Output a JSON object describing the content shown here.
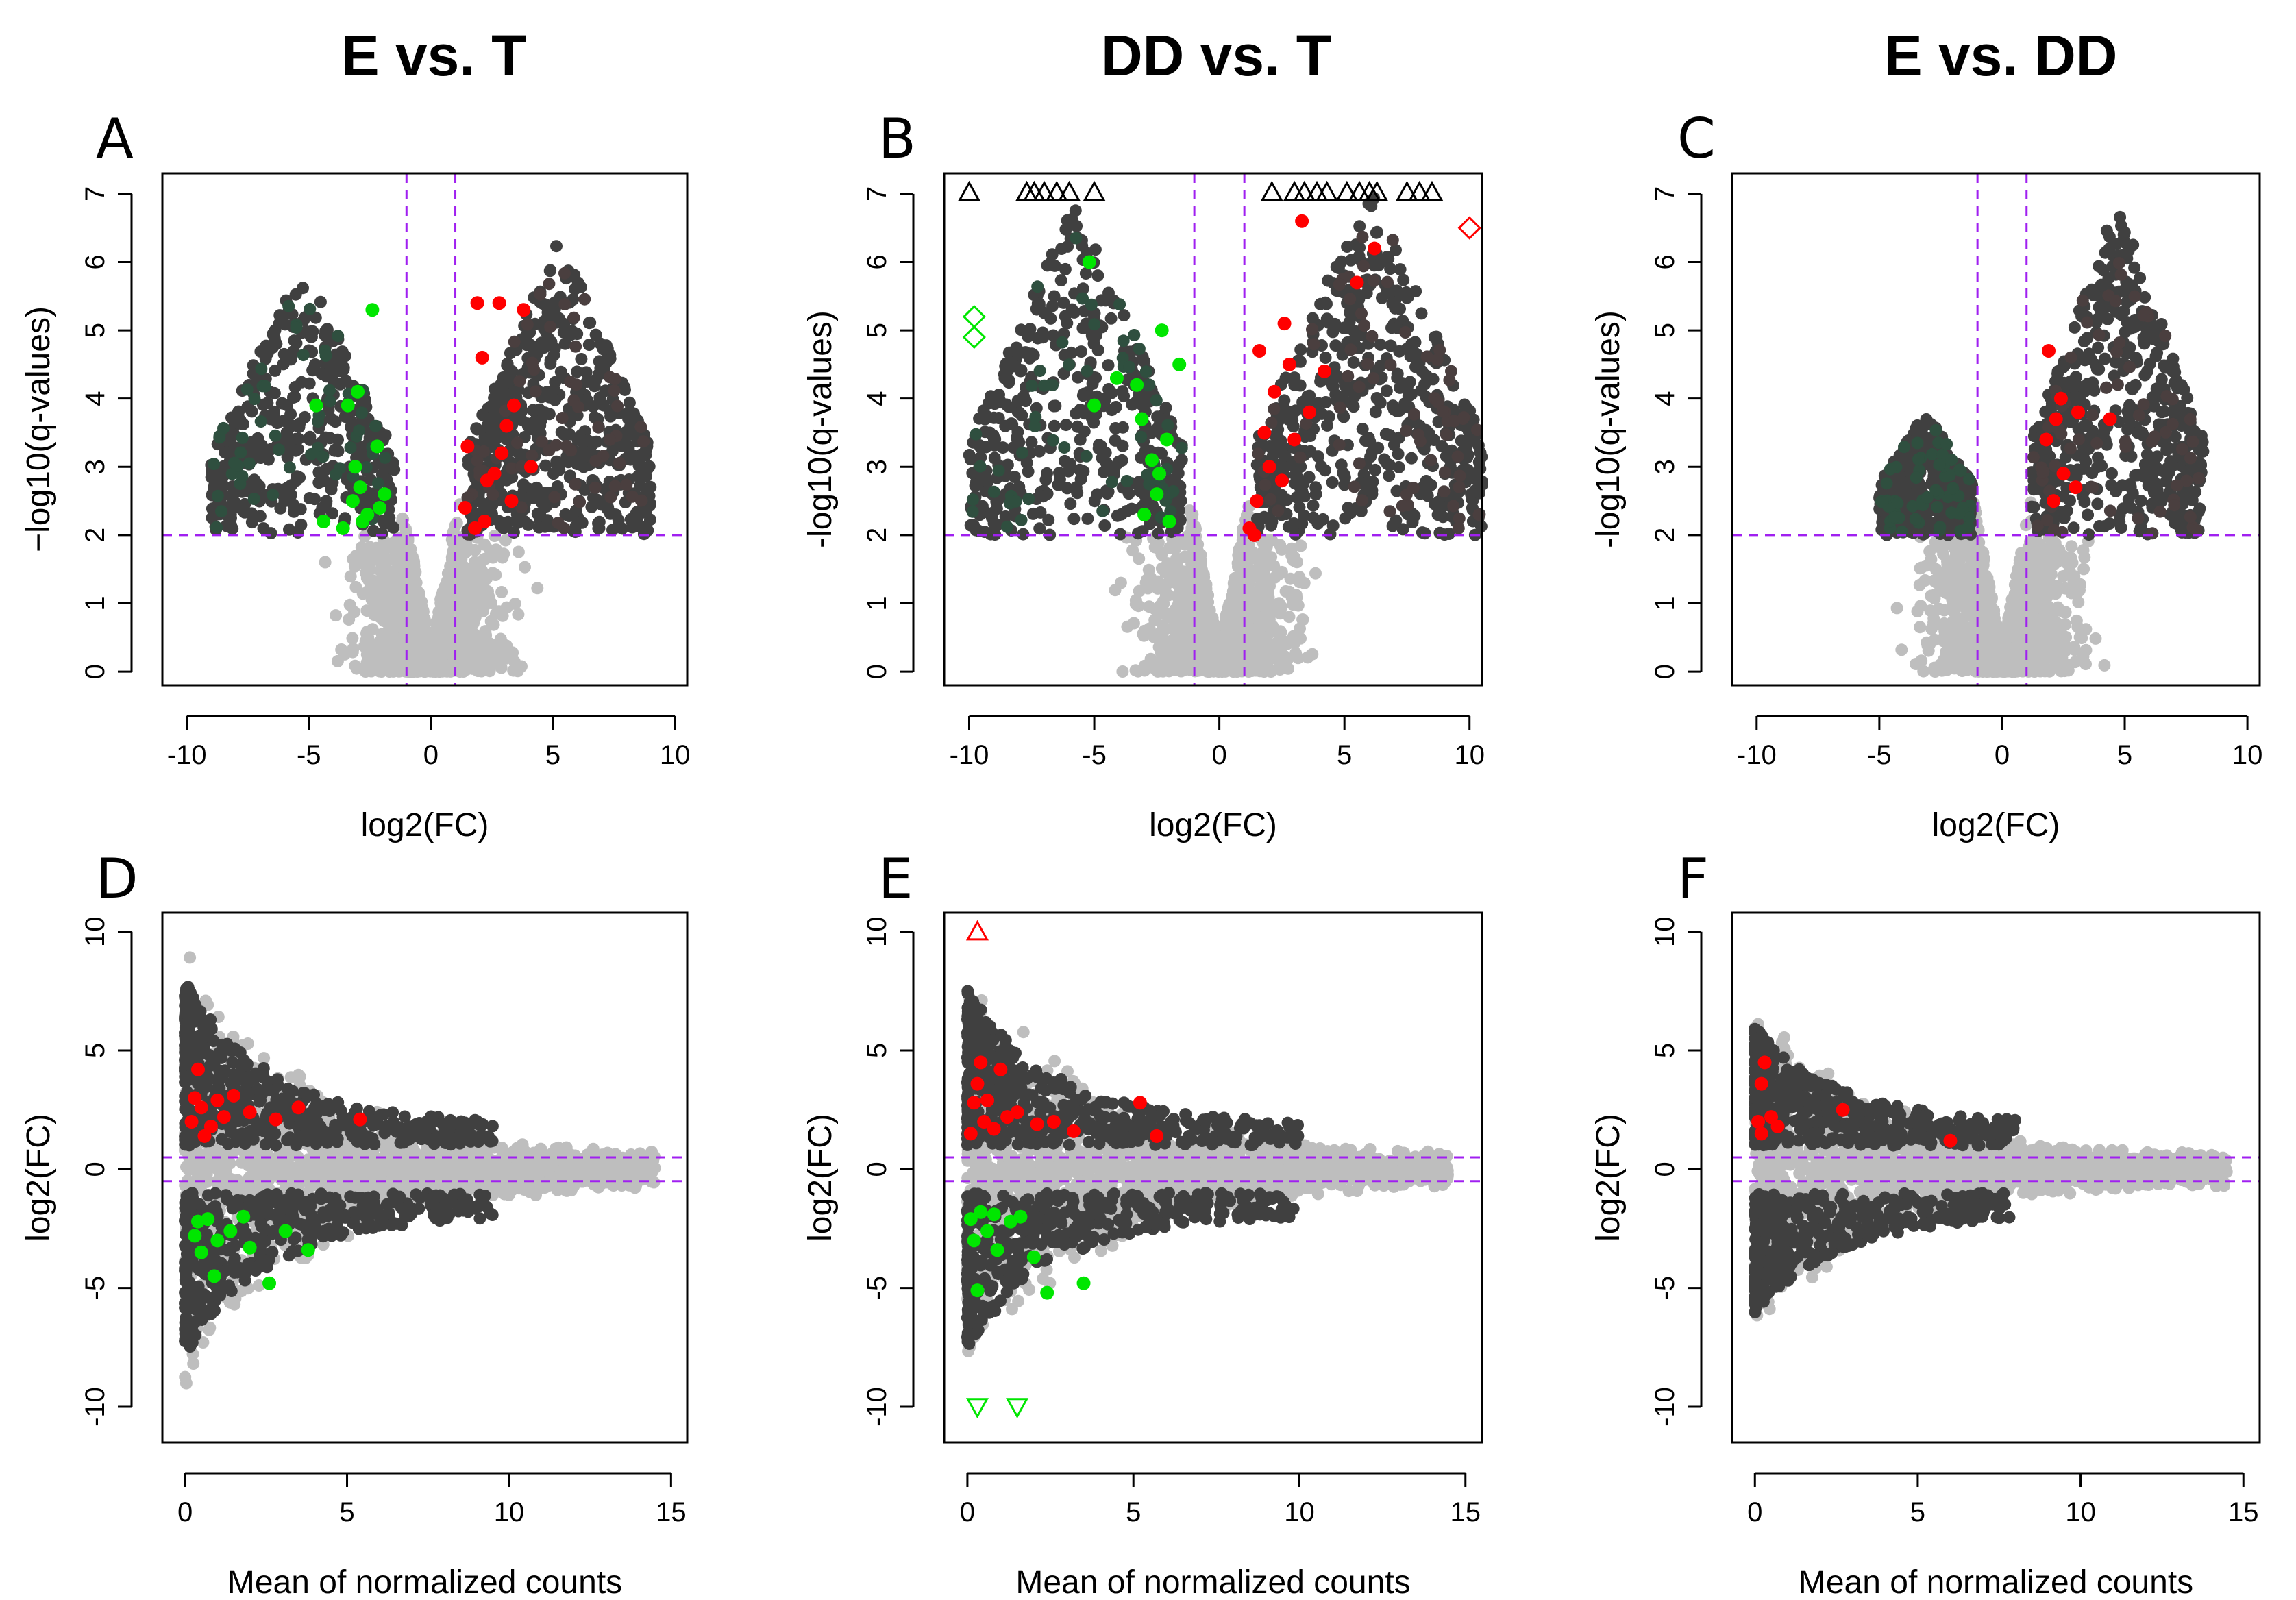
{
  "figure": {
    "column_titles": [
      "E vs. T",
      "DD vs. T",
      "E vs. DD"
    ],
    "point_colors": {
      "not_significant": "#bebebe",
      "significant_down": "#2f4f3f",
      "significant_up": "#4a3f3f",
      "significant_neutral": "#404040",
      "highlight_up": "#ff0000",
      "highlight_down": "#00e600",
      "threshold_line": "#a020f0",
      "axis": "#000000"
    }
  },
  "chart_data": [
    {
      "panel": "A",
      "type": "scatter",
      "subtype": "volcano",
      "xlabel": "log2(FC)",
      "ylabel": "−log10(q-values)",
      "xlim": [
        -11,
        10.5
      ],
      "ylim": [
        -0.2,
        7.3
      ],
      "xticks": [
        -10,
        -5,
        0,
        5,
        10
      ],
      "yticks": [
        0,
        1,
        2,
        3,
        4,
        5,
        6,
        7
      ],
      "thresholds": {
        "vertical": [
          -1,
          1
        ],
        "horizontal": [
          2
        ]
      },
      "left_range": [
        -9,
        -1.5
      ],
      "right_range": [
        1.5,
        9
      ],
      "left_top": 6.0,
      "right_top": 6.4,
      "highlight_up": [
        [
          1.8,
          2.1
        ],
        [
          2.3,
          2.8
        ],
        [
          2.9,
          3.2
        ],
        [
          3.4,
          3.9
        ],
        [
          2.1,
          4.6
        ],
        [
          3.8,
          5.3
        ],
        [
          1.4,
          2.4
        ],
        [
          2.6,
          2.9
        ],
        [
          3.1,
          3.6
        ],
        [
          4.1,
          3.0
        ],
        [
          1.9,
          5.4
        ],
        [
          2.8,
          5.4
        ],
        [
          3.3,
          2.5
        ],
        [
          1.5,
          3.3
        ],
        [
          2.2,
          2.2
        ]
      ],
      "highlight_down": [
        [
          -2.6,
          2.3
        ],
        [
          -3.1,
          3.0
        ],
        [
          -3.4,
          3.9
        ],
        [
          -2.9,
          2.7
        ],
        [
          -2.2,
          3.3
        ],
        [
          -1.9,
          2.6
        ],
        [
          -3.6,
          2.1
        ],
        [
          -2.4,
          5.3
        ],
        [
          -4.4,
          2.2
        ],
        [
          -4.7,
          3.9
        ],
        [
          -2.1,
          2.4
        ],
        [
          -3.2,
          2.5
        ],
        [
          -2.8,
          2.2
        ],
        [
          -3.0,
          4.1
        ]
      ],
      "triangles_up": [],
      "triangles_down": [],
      "diamonds_red": [],
      "diamonds_green": []
    },
    {
      "panel": "B",
      "type": "scatter",
      "subtype": "volcano",
      "xlabel": "log2(FC)",
      "ylabel": "-log10(q-values)",
      "xlim": [
        -11,
        10.5
      ],
      "ylim": [
        -0.2,
        7.3
      ],
      "xticks": [
        -10,
        -5,
        0,
        5,
        10
      ],
      "yticks": [
        0,
        1,
        2,
        3,
        4,
        5,
        6,
        7
      ],
      "thresholds": {
        "vertical": [
          -1,
          1
        ],
        "horizontal": [
          2
        ]
      },
      "left_range": [
        -10,
        -1.5
      ],
      "right_range": [
        1.5,
        10.5
      ],
      "left_top": 6.9,
      "right_top": 7.1,
      "highlight_up": [
        [
          1.2,
          2.1
        ],
        [
          1.5,
          2.5
        ],
        [
          2.0,
          3.0
        ],
        [
          2.2,
          4.1
        ],
        [
          2.8,
          4.5
        ],
        [
          3.3,
          6.6
        ],
        [
          1.8,
          3.5
        ],
        [
          4.2,
          4.4
        ],
        [
          5.5,
          5.7
        ],
        [
          2.5,
          2.8
        ],
        [
          3.0,
          3.4
        ],
        [
          1.4,
          2.0
        ],
        [
          6.2,
          6.2
        ],
        [
          1.6,
          4.7
        ],
        [
          2.6,
          5.1
        ],
        [
          3.6,
          3.8
        ]
      ],
      "highlight_down": [
        [
          -2.0,
          2.2
        ],
        [
          -2.5,
          2.6
        ],
        [
          -2.7,
          3.1
        ],
        [
          -3.1,
          3.7
        ],
        [
          -3.3,
          4.2
        ],
        [
          -5.2,
          6.0
        ],
        [
          -1.6,
          4.5
        ],
        [
          -5.0,
          3.9
        ],
        [
          -2.3,
          5.0
        ],
        [
          -3.0,
          2.3
        ],
        [
          -2.4,
          2.9
        ],
        [
          -4.1,
          4.3
        ],
        [
          -2.1,
          3.4
        ]
      ],
      "triangles_up": [
        [
          -10,
          7.02
        ],
        [
          -7.7,
          7.02
        ],
        [
          -7.4,
          7.02
        ],
        [
          -7.0,
          7.02
        ],
        [
          -6.5,
          7.02
        ],
        [
          -6.0,
          7.02
        ],
        [
          -5.0,
          7.02
        ],
        [
          2.1,
          7.02
        ],
        [
          3.0,
          7.02
        ],
        [
          3.4,
          7.02
        ],
        [
          3.9,
          7.02
        ],
        [
          4.3,
          7.02
        ],
        [
          5.1,
          7.02
        ],
        [
          5.6,
          7.02
        ],
        [
          6.0,
          7.02
        ],
        [
          6.3,
          7.02
        ],
        [
          7.5,
          7.02
        ],
        [
          8.0,
          7.02
        ],
        [
          8.5,
          7.02
        ]
      ],
      "triangles_down": [],
      "diamonds_red": [
        [
          10,
          6.5
        ]
      ],
      "diamonds_green": [
        [
          -9.8,
          5.2
        ],
        [
          -9.8,
          4.9
        ]
      ]
    },
    {
      "panel": "C",
      "type": "scatter",
      "subtype": "volcano",
      "xlabel": "log2(FC)",
      "ylabel": "-log10(q-values)",
      "xlim": [
        -11,
        10.5
      ],
      "ylim": [
        -0.2,
        7.3
      ],
      "xticks": [
        -10,
        -5,
        0,
        5,
        10
      ],
      "yticks": [
        0,
        1,
        2,
        3,
        4,
        5,
        6,
        7
      ],
      "thresholds": {
        "vertical": [
          -1,
          1
        ],
        "horizontal": [
          2
        ]
      },
      "left_range": [
        -5,
        -1.2
      ],
      "right_range": [
        1.2,
        8.2
      ],
      "left_top": 3.8,
      "right_top": 6.9,
      "highlight_up": [
        [
          1.9,
          4.7
        ],
        [
          2.1,
          2.5
        ],
        [
          2.5,
          2.9
        ],
        [
          3.0,
          2.7
        ],
        [
          2.2,
          3.7
        ],
        [
          4.4,
          3.7
        ],
        [
          3.1,
          3.8
        ],
        [
          2.4,
          4.0
        ],
        [
          1.8,
          3.4
        ]
      ],
      "highlight_down": [],
      "triangles_up": [],
      "triangles_down": [],
      "diamonds_red": [],
      "diamonds_green": []
    },
    {
      "panel": "D",
      "type": "scatter",
      "subtype": "MA",
      "xlabel": "Mean of normalized counts",
      "ylabel": "log2(FC)",
      "xlim": [
        -0.7,
        15.5
      ],
      "ylim": [
        -11.5,
        10.8
      ],
      "xticks": [
        0,
        5,
        10,
        15
      ],
      "yticks": [
        -10,
        -5,
        0,
        5,
        10
      ],
      "thresholds": {
        "horizontal": [
          -0.5,
          0.5
        ]
      },
      "spread": 9.0,
      "dark_extent": 9.5,
      "highlight_up": [
        [
          0.2,
          2.0
        ],
        [
          0.3,
          3.0
        ],
        [
          0.5,
          2.6
        ],
        [
          0.8,
          1.8
        ],
        [
          1.2,
          2.2
        ],
        [
          1.5,
          3.1
        ],
        [
          2.0,
          2.4
        ],
        [
          2.8,
          2.1
        ],
        [
          3.5,
          2.6
        ],
        [
          5.4,
          2.1
        ],
        [
          0.4,
          4.2
        ],
        [
          0.6,
          1.4
        ],
        [
          1.0,
          2.9
        ]
      ],
      "highlight_down": [
        [
          0.3,
          -2.8
        ],
        [
          0.5,
          -3.5
        ],
        [
          0.7,
          -2.1
        ],
        [
          1.0,
          -3.0
        ],
        [
          1.4,
          -2.6
        ],
        [
          2.0,
          -3.3
        ],
        [
          2.6,
          -4.8
        ],
        [
          3.1,
          -2.6
        ],
        [
          3.8,
          -3.4
        ],
        [
          0.9,
          -4.5
        ],
        [
          1.8,
          -2.0
        ],
        [
          0.4,
          -2.2
        ]
      ],
      "triangles_up": [],
      "triangles_down": [],
      "diamonds_red": [],
      "diamonds_green": []
    },
    {
      "panel": "E",
      "type": "scatter",
      "subtype": "MA",
      "xlabel": "Mean of normalized counts",
      "ylabel": "log2(FC)",
      "xlim": [
        -0.7,
        15.5
      ],
      "ylim": [
        -11.5,
        10.8
      ],
      "xticks": [
        0,
        5,
        10,
        15
      ],
      "yticks": [
        -10,
        -5,
        0,
        5,
        10
      ],
      "thresholds": {
        "horizontal": [
          -0.5,
          0.5
        ]
      },
      "spread": 8.5,
      "dark_extent": 10.0,
      "highlight_up": [
        [
          0.1,
          1.5
        ],
        [
          0.2,
          2.8
        ],
        [
          0.3,
          3.6
        ],
        [
          0.5,
          2.0
        ],
        [
          0.8,
          1.7
        ],
        [
          1.0,
          4.2
        ],
        [
          1.5,
          2.4
        ],
        [
          2.1,
          1.9
        ],
        [
          3.2,
          1.6
        ],
        [
          5.2,
          2.8
        ],
        [
          5.7,
          1.4
        ],
        [
          0.4,
          4.5
        ],
        [
          0.6,
          2.9
        ],
        [
          1.2,
          2.2
        ],
        [
          2.6,
          2.0
        ]
      ],
      "highlight_down": [
        [
          0.1,
          -2.1
        ],
        [
          0.2,
          -3.0
        ],
        [
          0.4,
          -1.8
        ],
        [
          0.6,
          -2.6
        ],
        [
          0.9,
          -3.4
        ],
        [
          1.3,
          -2.2
        ],
        [
          2.0,
          -3.7
        ],
        [
          2.4,
          -5.2
        ],
        [
          3.5,
          -4.8
        ],
        [
          0.3,
          -5.1
        ],
        [
          1.6,
          -2.0
        ],
        [
          0.8,
          -1.9
        ]
      ],
      "triangles_up": [
        [
          0.3,
          10.0
        ]
      ],
      "triangles_down": [
        [
          0.3,
          -10.0
        ],
        [
          1.5,
          -10.0
        ]
      ],
      "diamonds_red": [],
      "diamonds_green": []
    },
    {
      "panel": "F",
      "type": "scatter",
      "subtype": "MA",
      "xlabel": "Mean of normalized counts",
      "ylabel": "log2(FC)",
      "xlim": [
        -0.7,
        15.5
      ],
      "ylim": [
        -11.5,
        10.8
      ],
      "xticks": [
        0,
        5,
        10,
        15
      ],
      "yticks": [
        -10,
        -5,
        0,
        5,
        10
      ],
      "thresholds": {
        "horizontal": [
          -0.5,
          0.5
        ]
      },
      "spread": 6.5,
      "dark_extent": 8.0,
      "highlight_up": [
        [
          0.1,
          2.0
        ],
        [
          0.2,
          3.6
        ],
        [
          0.3,
          4.5
        ],
        [
          0.5,
          2.2
        ],
        [
          0.7,
          1.8
        ],
        [
          2.7,
          2.5
        ],
        [
          6.0,
          1.2
        ],
        [
          0.2,
          1.5
        ]
      ],
      "highlight_down": [],
      "triangles_up": [],
      "triangles_down": [],
      "diamonds_red": [],
      "diamonds_green": []
    }
  ]
}
